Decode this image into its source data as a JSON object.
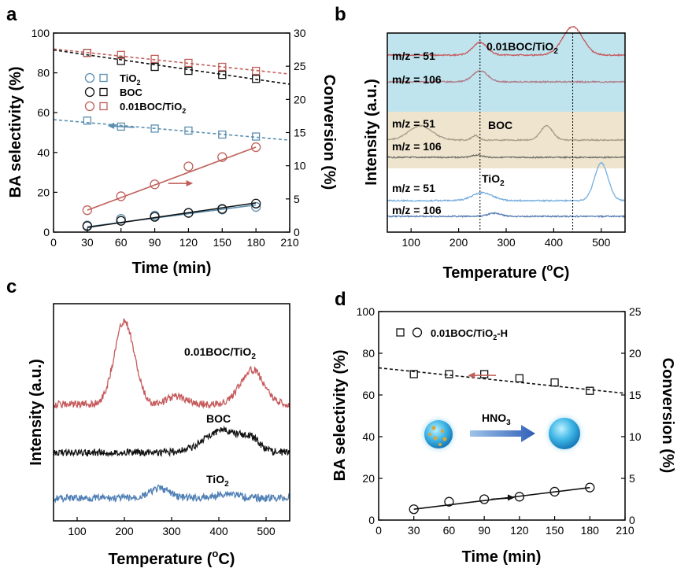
{
  "chart_data": [
    {
      "panel": "a",
      "type": "scatter",
      "xlabel": "Time (min)",
      "ylabel": "BA selectivity (%)",
      "y2label": "Conversion (%)",
      "xlim": [
        0,
        210
      ],
      "ylim": [
        0,
        100
      ],
      "y2lim": [
        0,
        30
      ],
      "xticks": [
        0,
        30,
        60,
        90,
        120,
        150,
        180,
        210
      ],
      "yticks": [
        0,
        20,
        40,
        60,
        80,
        100
      ],
      "y2ticks": [
        0,
        5,
        10,
        15,
        20,
        25,
        30
      ],
      "x": [
        30,
        60,
        90,
        120,
        150,
        180
      ],
      "series": [
        {
          "name": "TiO2",
          "label": "TiO",
          "sub": "2",
          "color": "#5b8fb0",
          "selectivity": [
            56,
            53,
            52,
            51,
            49,
            48
          ],
          "conversion": [
            1.0,
            2.0,
            2.5,
            2.9,
            3.4,
            3.8
          ],
          "sel_fit": [
            56.5,
            46.2
          ],
          "conv_fit": [
            0.8,
            4.1
          ]
        },
        {
          "name": "BOC",
          "label": "BOC",
          "sub": "",
          "color": "#111111",
          "selectivity": [
            90,
            86,
            83,
            81,
            79,
            77
          ],
          "conversion": [
            0.9,
            1.7,
            2.3,
            2.9,
            3.5,
            4.3
          ],
          "sel_fit": [
            91.5,
            74.3
          ],
          "conv_fit": [
            0.7,
            4.4
          ]
        },
        {
          "name": "0.01BOC/TiO2",
          "label": "0.01BOC/TiO",
          "sub": "2",
          "color": "#c0605a",
          "selectivity": [
            90,
            89,
            87,
            85,
            83,
            81
          ],
          "conversion": [
            3.3,
            5.4,
            7.2,
            9.9,
            11.3,
            12.8
          ],
          "sel_fit": [
            92.0,
            79.4
          ],
          "conv_fit": [
            3.3,
            12.8
          ]
        }
      ],
      "arrows": [
        {
          "series_axis": "selectivity",
          "color": "#5b8fb0",
          "direction": "left"
        },
        {
          "series_axis": "conversion",
          "color": "#c0605a",
          "direction": "right"
        }
      ]
    },
    {
      "panel": "b",
      "type": "line",
      "xlabel": "Temperature (",
      "xlabel_sup": "o",
      "xlabel_tail": "C)",
      "ylabel": "Intensity (a.u.)",
      "xlim": [
        50,
        550
      ],
      "xticks": [
        100,
        200,
        300,
        400,
        500
      ],
      "vlines": [
        245,
        440
      ],
      "bands": [
        {
          "name": "0.01BOC/TiO2",
          "color": "#bfe4ee"
        },
        {
          "name": "BOC",
          "color": "#efe5cf"
        },
        {
          "name": "TiO2",
          "color": "#ffffff"
        }
      ],
      "labels": [
        {
          "text": "0.01BOC/TiO",
          "sub": "2"
        },
        {
          "text": "BOC",
          "sub": ""
        },
        {
          "text": "TiO",
          "sub": "2"
        }
      ],
      "curve_labels": [
        "m/z = 51",
        "m/z = 106",
        "m/z = 51",
        "m/z = 106",
        "m/z = 51",
        "m/z = 106"
      ],
      "series": [
        {
          "name": "0.01BOC/TiO2 m/z = 51",
          "color": "#c65a5c",
          "baseline": 70,
          "peaks": [
            [
              245,
              16,
              22
            ],
            [
              440,
              36,
              30
            ]
          ]
        },
        {
          "name": "0.01BOC/TiO2 m/z = 106",
          "color": "#b07a86",
          "baseline": 104,
          "peaks": [
            [
              245,
              14,
              22
            ]
          ]
        },
        {
          "name": "BOC m/z = 51",
          "color": "#a89d8a",
          "baseline": 178,
          "peaks": [
            [
              120,
              18,
              35
            ],
            [
              235,
              6,
              10
            ],
            [
              385,
              18,
              18
            ]
          ]
        },
        {
          "name": "BOC m/z = 106",
          "color": "#6f6f67",
          "baseline": 200,
          "peaks": [
            [
              240,
              3,
              15
            ]
          ]
        },
        {
          "name": "TiO2 m/z = 51",
          "color": "#76aedd",
          "baseline": 255,
          "peaks": [
            [
              250,
              10,
              30
            ],
            [
              500,
              48,
              20
            ]
          ]
        },
        {
          "name": "TiO2 m/z = 106",
          "color": "#567cb2",
          "baseline": 275,
          "peaks": [
            [
              275,
              4,
              20
            ]
          ]
        }
      ]
    },
    {
      "panel": "c",
      "type": "line",
      "xlabel": "Temperature (",
      "xlabel_sup": "o",
      "xlabel_tail": "C)",
      "ylabel": "Intensity (a.u.)",
      "xlim": [
        50,
        550
      ],
      "xticks": [
        100,
        200,
        300,
        400,
        500
      ],
      "labels": [
        {
          "text": "0.01BOC/TiO",
          "sub": "2"
        },
        {
          "text": "BOC",
          "sub": ""
        },
        {
          "text": "TiO",
          "sub": "2"
        }
      ],
      "series": [
        {
          "name": "0.01BOC/TiO2",
          "color": "#c65a5c",
          "baseline": 514,
          "peaks": [
            [
              200,
              106,
              30
            ],
            [
              470,
              44,
              35
            ],
            [
              310,
              10,
              30
            ]
          ]
        },
        {
          "name": "BOC",
          "color": "#111111",
          "baseline": 575,
          "peaks": [
            [
              410,
              28,
              55
            ],
            [
              470,
              12,
              25
            ]
          ]
        },
        {
          "name": "TiO2",
          "color": "#4f7fb5",
          "baseline": 633,
          "peaks": [
            [
              275,
              12,
              30
            ],
            [
              420,
              6,
              30
            ]
          ]
        }
      ]
    },
    {
      "panel": "d",
      "type": "scatter",
      "xlabel": "Time (min)",
      "ylabel": "BA selectivity (%)",
      "y2label": "Conversion (%)",
      "xlim": [
        0,
        210
      ],
      "ylim": [
        0,
        100
      ],
      "y2lim": [
        0,
        25
      ],
      "xticks": [
        0,
        30,
        60,
        90,
        120,
        150,
        180,
        210
      ],
      "yticks": [
        0,
        20,
        40,
        60,
        80,
        100
      ],
      "y2ticks": [
        0,
        5,
        10,
        15,
        20,
        25
      ],
      "x": [
        30,
        60,
        90,
        120,
        150,
        180
      ],
      "legend": {
        "text": "0.01BOC/TiO",
        "sub": "2",
        "tail": "-H"
      },
      "series": [
        {
          "name": "0.01BOC/TiO2-H",
          "color": "#111111",
          "selectivity": [
            70,
            70,
            70,
            68,
            66,
            62
          ],
          "conversion": [
            1.3,
            2.2,
            2.5,
            2.8,
            3.4,
            3.9
          ],
          "sel_fit": [
            73.0,
            60.8
          ],
          "conv_fit": [
            1.3,
            3.9
          ]
        }
      ],
      "inset": {
        "label": "HNO",
        "sub": "3"
      }
    }
  ],
  "panel_labels": [
    "a",
    "b",
    "c",
    "d"
  ]
}
